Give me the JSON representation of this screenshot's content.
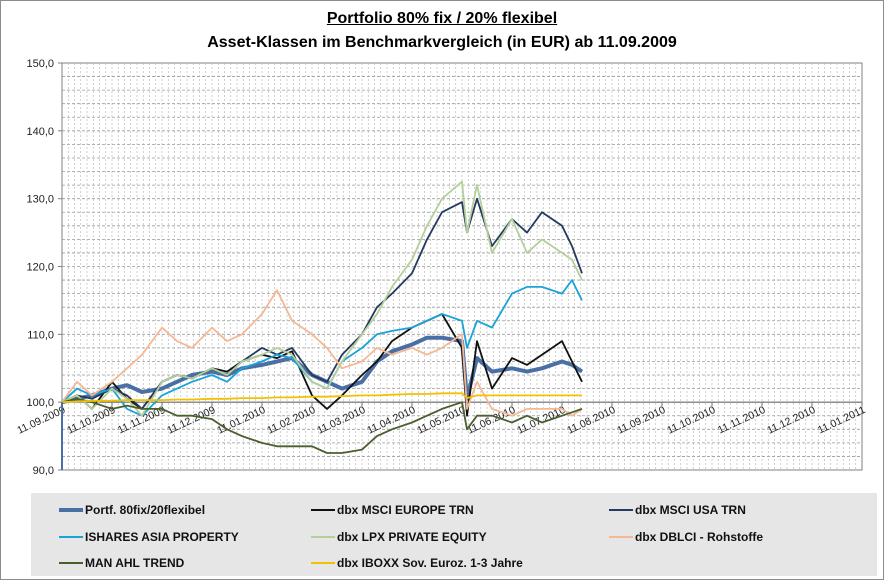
{
  "chart_data": {
    "type": "line",
    "title": "Portfolio 80% fix / 20% flexibel",
    "subtitle": "Asset-Klassen im Benchmarkvergleich (in EUR) ab 11.09.2009",
    "xlabel": "",
    "ylabel": "",
    "ylim": [
      90,
      150
    ],
    "y_ticks": [
      "90,0",
      "100,0",
      "110,0",
      "120,0",
      "130,0",
      "140,0",
      "150,0"
    ],
    "x_tick_labels": [
      "11.09.2009",
      "11.10.2009",
      "11.11.2009",
      "11.12.2009",
      "11.01.2010",
      "11.02.2010",
      "11.03.2010",
      "11.04.2010",
      "11.05.2010",
      "11.06.2010",
      "11.07.2010",
      "11.08.2010",
      "11.09.2010",
      "11.10.2010",
      "11.11.2010",
      "11.12.2010",
      "11.01.2011"
    ],
    "x_domain_months": [
      0,
      16
    ],
    "grid": true,
    "legend_position": "bottom",
    "series": [
      {
        "name": "Portf. 80fix/20flexibel",
        "color": "#4a6fa5",
        "width": 4,
        "x": [
          0,
          0.3,
          0.6,
          1,
          1.3,
          1.6,
          2,
          2.3,
          2.6,
          3,
          3.3,
          3.6,
          4,
          4.3,
          4.6,
          5,
          5.3,
          5.6,
          6,
          6.3,
          6.6,
          7,
          7.3,
          7.6,
          8,
          8.1,
          8.3,
          8.6,
          9,
          9.3,
          9.6,
          10,
          10.2,
          10.4
        ],
        "y": [
          100,
          100.5,
          101,
          102,
          102.5,
          101.5,
          102,
          103,
          104,
          104.5,
          104,
          105,
          105.5,
          106,
          106.5,
          104,
          103,
          102,
          103,
          106,
          107.5,
          108.5,
          109.5,
          109.5,
          109,
          100.5,
          106.5,
          104.5,
          105,
          104.5,
          105,
          106,
          105.5,
          104.5
        ]
      },
      {
        "name": "dbx MSCI EUROPE TRN",
        "color": "#111111",
        "width": 1.8,
        "x": [
          0,
          0.3,
          0.6,
          1,
          1.3,
          1.6,
          2,
          2.3,
          2.6,
          3,
          3.3,
          3.6,
          4,
          4.3,
          4.6,
          5,
          5.3,
          5.6,
          6,
          6.3,
          6.6,
          7,
          7.3,
          7.6,
          8,
          8.1,
          8.3,
          8.6,
          9,
          9.3,
          9.6,
          10,
          10.2,
          10.4
        ],
        "y": [
          100,
          101,
          99,
          103,
          100.5,
          99,
          103,
          104,
          103.5,
          105,
          104.5,
          106,
          107,
          106.5,
          107.5,
          101,
          99,
          101,
          104,
          106,
          109,
          111,
          112,
          113,
          108,
          98,
          109,
          102,
          106.5,
          105.5,
          107,
          109,
          106,
          103
        ]
      },
      {
        "name": "dbx MSCI USA TRN",
        "color": "#243a5e",
        "width": 1.8,
        "x": [
          0,
          0.3,
          0.6,
          1,
          1.3,
          1.6,
          2,
          2.3,
          2.6,
          3,
          3.3,
          3.6,
          4,
          4.3,
          4.6,
          5,
          5.3,
          5.6,
          6,
          6.3,
          6.6,
          7,
          7.3,
          7.6,
          8,
          8.1,
          8.3,
          8.6,
          9,
          9.3,
          9.6,
          10,
          10.2,
          10.4
        ],
        "y": [
          100,
          101,
          100.5,
          102,
          101,
          99,
          103,
          104,
          103.5,
          105,
          104,
          106,
          108,
          107,
          108,
          104,
          103,
          107,
          110,
          114,
          116,
          119,
          124,
          128,
          129.5,
          125,
          130,
          123,
          127,
          125,
          128,
          126,
          123,
          119
        ]
      },
      {
        "name": "ISHARES ASIA PROPERTY",
        "color": "#1aa3d9",
        "width": 1.8,
        "x": [
          0,
          0.3,
          0.6,
          1,
          1.3,
          1.6,
          2,
          2.3,
          2.6,
          3,
          3.3,
          3.6,
          4,
          4.3,
          4.6,
          5,
          5.3,
          5.6,
          6,
          6.3,
          6.6,
          7,
          7.3,
          7.6,
          8,
          8.1,
          8.3,
          8.6,
          9,
          9.3,
          9.6,
          10,
          10.2,
          10.4
        ],
        "y": [
          100,
          102,
          101,
          102,
          99,
          98,
          101,
          102,
          103,
          104,
          103,
          105,
          106,
          107,
          106.5,
          103,
          102,
          106,
          108,
          110,
          110.5,
          111,
          112,
          113,
          112,
          108,
          112,
          111,
          116,
          117,
          117,
          116,
          118,
          115
        ]
      },
      {
        "name": "dbx LPX PRIVATE EQUITY",
        "color": "#b5cf9b",
        "width": 1.8,
        "x": [
          0,
          0.3,
          0.6,
          1,
          1.3,
          1.6,
          2,
          2.3,
          2.6,
          3,
          3.3,
          3.6,
          4,
          4.3,
          4.6,
          5,
          5.3,
          5.6,
          6,
          6.3,
          6.6,
          7,
          7.3,
          7.6,
          8,
          8.1,
          8.3,
          8.6,
          9,
          9.3,
          9.6,
          10,
          10.2,
          10.4
        ],
        "y": [
          100,
          101,
          99,
          102,
          100.5,
          98,
          103,
          104,
          103.5,
          105,
          104,
          106,
          107,
          108,
          107,
          103,
          102,
          106,
          110,
          113,
          117,
          121,
          126,
          130,
          132.5,
          125,
          132,
          122,
          127,
          122,
          124,
          122,
          121,
          118
        ]
      },
      {
        "name": "dbx DBLCI - Rohstoffe",
        "color": "#f3b995",
        "width": 1.8,
        "x": [
          0,
          0.3,
          0.6,
          1,
          1.3,
          1.6,
          2,
          2.3,
          2.6,
          3,
          3.3,
          3.6,
          4,
          4.3,
          4.6,
          5,
          5.3,
          5.6,
          6,
          6.3,
          6.6,
          7,
          7.3,
          7.6,
          8,
          8.1,
          8.3,
          8.6,
          9,
          9.3,
          9.6,
          10,
          10.2,
          10.4
        ],
        "y": [
          100,
          103,
          101,
          103,
          105,
          107,
          111,
          109,
          108,
          111,
          109,
          110,
          113,
          116.5,
          112,
          110,
          108,
          105,
          106,
          108,
          107,
          108,
          107,
          108,
          110,
          99,
          103,
          99,
          98,
          99,
          99,
          99,
          98,
          99
        ]
      },
      {
        "name": "MAN AHL TREND",
        "color": "#4b5e2f",
        "width": 1.8,
        "x": [
          0,
          0.3,
          0.6,
          1,
          1.3,
          1.6,
          2,
          2.3,
          2.6,
          3,
          3.3,
          3.6,
          4,
          4.3,
          4.6,
          5,
          5.3,
          5.6,
          6,
          6.3,
          6.6,
          7,
          7.3,
          7.6,
          8,
          8.1,
          8.3,
          8.6,
          9,
          9.3,
          9.6,
          10,
          10.2,
          10.4
        ],
        "y": [
          100,
          100.5,
          100,
          99,
          99.5,
          99,
          99,
          98,
          98,
          97.5,
          96,
          95,
          94,
          93.5,
          93.5,
          93.5,
          92.5,
          92.5,
          93,
          95,
          96,
          97,
          98,
          99,
          100,
          96,
          98,
          98,
          97,
          98,
          97,
          98,
          98.5,
          99
        ]
      },
      {
        "name": "dbx IBOXX Sov. Euroz. 1-3 Jahre",
        "color": "#f2c200",
        "width": 1.8,
        "x": [
          0,
          0.3,
          0.6,
          1,
          1.3,
          1.6,
          2,
          2.3,
          2.6,
          3,
          3.3,
          3.6,
          4,
          4.3,
          4.6,
          5,
          5.3,
          5.6,
          6,
          6.3,
          6.6,
          7,
          7.3,
          7.6,
          8,
          8.1,
          8.3,
          8.6,
          9,
          9.3,
          9.6,
          10,
          10.2,
          10.4
        ],
        "y": [
          100,
          100.1,
          100.2,
          100.2,
          100.3,
          100.3,
          100.3,
          100.4,
          100.4,
          100.5,
          100.5,
          100.6,
          100.6,
          100.7,
          100.7,
          100.8,
          100.8,
          100.9,
          101,
          101,
          101.1,
          101.2,
          101.2,
          101.3,
          101.3,
          100.6,
          101,
          101,
          101,
          101,
          101,
          101,
          101,
          101
        ]
      }
    ]
  }
}
